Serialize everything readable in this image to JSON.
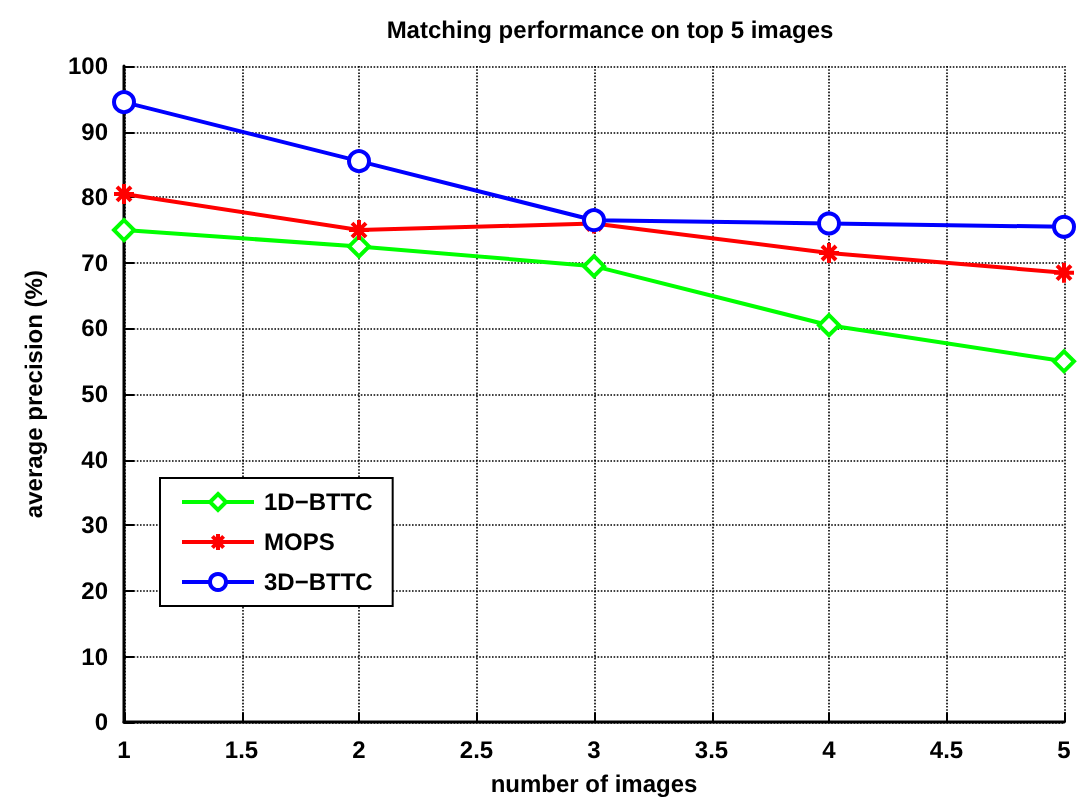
{
  "chart_data": {
    "type": "line",
    "title": "Matching performance on top 5 images",
    "xlabel": "number of images",
    "ylabel": "average precision (%)",
    "x": [
      1,
      2,
      3,
      4,
      5
    ],
    "series": [
      {
        "name": "1D−BTTC",
        "color": "#00ff00",
        "marker": "diamond",
        "values": [
          75,
          72.5,
          69.5,
          60.5,
          55
        ]
      },
      {
        "name": "MOPS",
        "color": "#ff0000",
        "marker": "cross",
        "values": [
          80.5,
          75,
          76,
          71.5,
          68.5
        ]
      },
      {
        "name": "3D−BTTC",
        "color": "#0000ff",
        "marker": "circle",
        "values": [
          94.5,
          85.5,
          76.5,
          76,
          75.5
        ]
      }
    ],
    "xlim": [
      1,
      5
    ],
    "xticks": [
      1,
      1.5,
      2,
      2.5,
      3,
      3.5,
      4,
      4.5,
      5
    ],
    "ylim": [
      0,
      100
    ],
    "yticks": [
      0,
      10,
      20,
      30,
      40,
      50,
      60,
      70,
      80,
      90,
      100
    ],
    "grid": true,
    "legend": "bottom left",
    "line_style": "solid"
  }
}
